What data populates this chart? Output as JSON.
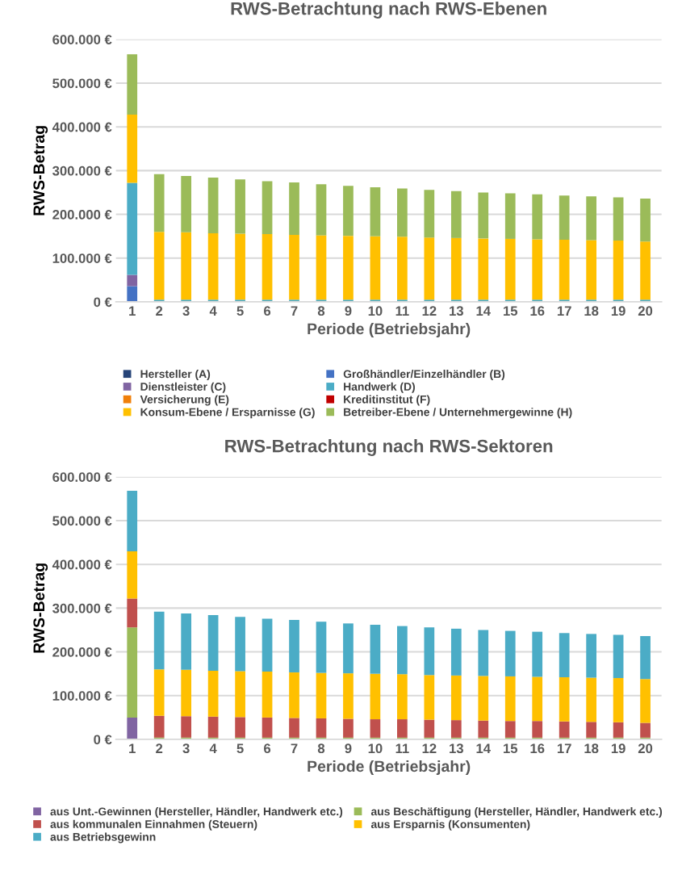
{
  "chart_data": [
    {
      "type": "bar",
      "stacked": true,
      "title": "RWS-Betrachtung nach RWS-Ebenen",
      "xlabel": "Periode (Betriebsjahr)",
      "ylabel": "RWS-Betrag",
      "categories": [
        "1",
        "2",
        "3",
        "4",
        "5",
        "6",
        "7",
        "8",
        "9",
        "10",
        "11",
        "12",
        "13",
        "14",
        "15",
        "16",
        "17",
        "18",
        "19",
        "20"
      ],
      "ylim": [
        0,
        600000
      ],
      "yticks": [
        {
          "value": 0,
          "label": "0 €"
        },
        {
          "value": 100000,
          "label": "100.000 €"
        },
        {
          "value": 200000,
          "label": "200.000 €"
        },
        {
          "value": 300000,
          "label": "300.000 €"
        },
        {
          "value": 400000,
          "label": "400.000 €"
        },
        {
          "value": 500000,
          "label": "500.000 €"
        },
        {
          "value": 600000,
          "label": "600.000 €"
        }
      ],
      "grid": "y",
      "legend": "bottom",
      "series": [
        {
          "name": "Hersteller (A)",
          "color": "#264478",
          "values": [
            0,
            0,
            0,
            0,
            0,
            0,
            0,
            0,
            0,
            0,
            0,
            0,
            0,
            0,
            0,
            0,
            0,
            0,
            0,
            0
          ]
        },
        {
          "name": "Großhändler/Einzelhändler (B)",
          "color": "#4472c4",
          "values": [
            36000,
            0,
            0,
            0,
            0,
            0,
            0,
            0,
            0,
            0,
            0,
            0,
            0,
            0,
            0,
            0,
            0,
            0,
            0,
            0
          ]
        },
        {
          "name": "Dienstleister (C)",
          "color": "#8064a2",
          "values": [
            26000,
            0,
            0,
            0,
            0,
            0,
            0,
            0,
            0,
            0,
            0,
            0,
            0,
            0,
            0,
            0,
            0,
            0,
            0,
            0
          ]
        },
        {
          "name": "Handwerk (D)",
          "color": "#4bacc6",
          "values": [
            210000,
            5000,
            5000,
            5000,
            5000,
            5000,
            5000,
            5000,
            5000,
            5000,
            5000,
            5000,
            5000,
            5000,
            5000,
            5000,
            5000,
            5000,
            5000,
            5000
          ]
        },
        {
          "name": "Versicherung (E)",
          "color": "#f07f09",
          "values": [
            0,
            0,
            0,
            0,
            0,
            0,
            0,
            0,
            0,
            0,
            0,
            0,
            0,
            0,
            0,
            0,
            0,
            0,
            0,
            0
          ]
        },
        {
          "name": "Kreditinstitut (F)",
          "color": "#c00000",
          "values": [
            0,
            0,
            0,
            0,
            0,
            0,
            0,
            0,
            0,
            0,
            0,
            0,
            0,
            0,
            0,
            0,
            0,
            0,
            0,
            0
          ]
        },
        {
          "name": "Konsum-Ebene / Ersparnisse (G)",
          "color": "#ffc000",
          "values": [
            156000,
            155000,
            154000,
            152000,
            151000,
            150000,
            148000,
            147000,
            146000,
            145000,
            144000,
            142000,
            141000,
            140000,
            139000,
            138000,
            137000,
            136000,
            135000,
            133000
          ]
        },
        {
          "name": "Betreiber-Ebene / Unternehmergewinne (H)",
          "color": "#9bbb59",
          "values": [
            138000,
            132000,
            129000,
            127000,
            124000,
            121000,
            120000,
            117000,
            114000,
            112000,
            110000,
            109000,
            107000,
            105000,
            104000,
            103000,
            101000,
            100000,
            99000,
            98000
          ]
        }
      ]
    },
    {
      "type": "bar",
      "stacked": true,
      "title": "RWS-Betrachtung nach RWS-Sektoren",
      "xlabel": "Periode (Betriebsjahr)",
      "ylabel": "RWS-Betrag",
      "categories": [
        "1",
        "2",
        "3",
        "4",
        "5",
        "6",
        "7",
        "8",
        "9",
        "10",
        "11",
        "12",
        "13",
        "14",
        "15",
        "16",
        "17",
        "18",
        "19",
        "20"
      ],
      "ylim": [
        0,
        600000
      ],
      "yticks": [
        {
          "value": 0,
          "label": "0 €"
        },
        {
          "value": 100000,
          "label": "100.000 €"
        },
        {
          "value": 200000,
          "label": "200.000 €"
        },
        {
          "value": 300000,
          "label": "300.000 €"
        },
        {
          "value": 400000,
          "label": "400.000 €"
        },
        {
          "value": 500000,
          "label": "500.000 €"
        },
        {
          "value": 600000,
          "label": "600.000 €"
        }
      ],
      "grid": "y",
      "legend": "bottom",
      "series": [
        {
          "name": "aus Unt.-Gewinnen (Hersteller, Händler, Handwerk etc.)",
          "color": "#8064a2",
          "values": [
            50000,
            1000,
            1000,
            1000,
            1000,
            1000,
            1000,
            1000,
            1000,
            1000,
            1000,
            1000,
            1000,
            1000,
            1000,
            1000,
            1000,
            1000,
            1000,
            1000
          ]
        },
        {
          "name": "aus Beschäftigung (Hersteller, Händler, Handwerk etc.)",
          "color": "#9bbb59",
          "values": [
            206000,
            3000,
            3000,
            3000,
            3000,
            3000,
            3000,
            3000,
            3000,
            3000,
            3000,
            3000,
            3000,
            3000,
            3000,
            3000,
            3000,
            3000,
            3000,
            3000
          ]
        },
        {
          "name": "aus kommunalen Einnahmen (Steuern)",
          "color": "#c0504d",
          "values": [
            66000,
            50000,
            49000,
            48000,
            47000,
            46000,
            45000,
            44000,
            43000,
            42000,
            42000,
            41000,
            40000,
            39000,
            38000,
            38000,
            37000,
            36000,
            35000,
            34000
          ]
        },
        {
          "name": "aus Ersparnis (Konsumenten)",
          "color": "#ffc000",
          "values": [
            108000,
            106000,
            106000,
            105000,
            105000,
            105000,
            104000,
            104000,
            104000,
            104000,
            103000,
            102000,
            102000,
            102000,
            102000,
            101000,
            101000,
            101000,
            101000,
            100000
          ]
        },
        {
          "name": "aus Betriebsgewinn",
          "color": "#4bacc6",
          "values": [
            138000,
            132000,
            129000,
            127000,
            124000,
            121000,
            120000,
            117000,
            114000,
            112000,
            110000,
            109000,
            107000,
            105000,
            104000,
            103000,
            101000,
            100000,
            99000,
            98000
          ]
        }
      ]
    }
  ]
}
